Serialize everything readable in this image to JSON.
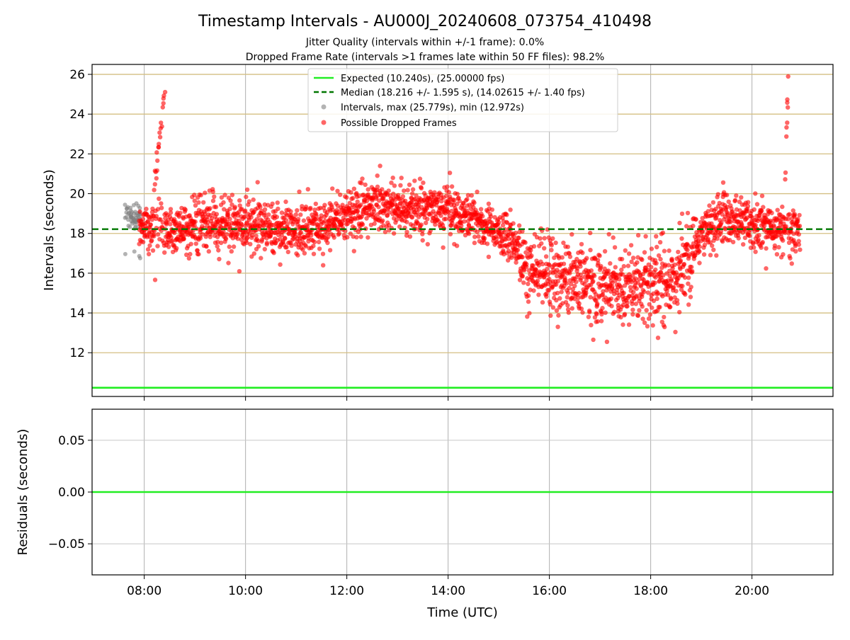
{
  "figure": {
    "title": "Timestamp Intervals - AU000J_20240608_073754_410498",
    "subtitle_1": "Jitter Quality (intervals within +/-1 frame): 0.0%",
    "subtitle_2": "Dropped Frame Rate (intervals >1 frames late within 50 FF files): 98.2%"
  },
  "chart_data": [
    {
      "type": "scatter",
      "panel": "intervals",
      "ylabel": "Intervals (seconds)",
      "xlim_hours": [
        6.97,
        21.6
      ],
      "ylim": [
        9.8,
        26.5
      ],
      "y_ticks": [
        12,
        14,
        16,
        18,
        20,
        22,
        24,
        26
      ],
      "grid": true,
      "legend_position": "top-center",
      "lines": [
        {
          "name": "Expected (10.240s), (25.00000 fps)",
          "y": 10.24,
          "color": "#22ee22",
          "style": "solid"
        },
        {
          "name": "Median (18.216 +/- 1.595 s), (14.02615 +/- 1.40 fps)",
          "y": 18.216,
          "color": "#007700",
          "style": "dashed"
        }
      ],
      "series": [
        {
          "name": "Intervals, max (25.779s), min (12.972s)",
          "color": "#808080",
          "x_range_hours": [
            7.62,
            7.93
          ],
          "y_mean": 18.9,
          "y_spread": 0.6,
          "y_min_seen": 16.2,
          "count_approx": 60
        },
        {
          "name": "Possible Dropped Frames",
          "color": "#ff0000",
          "x_range_hours": [
            7.9,
            20.95
          ],
          "trend_hours": [
            7.9,
            8.5,
            9.5,
            10.5,
            11.5,
            12.5,
            13.5,
            14.5,
            15.2,
            15.6,
            16.5,
            17.5,
            18.5,
            19.0,
            19.5,
            20.0,
            20.5,
            20.95
          ],
          "trend_y": [
            18.5,
            18.1,
            18.6,
            18.2,
            18.3,
            19.4,
            19.3,
            18.8,
            17.8,
            16.2,
            15.5,
            15.4,
            15.7,
            18.0,
            19.0,
            18.5,
            18.1,
            18.3
          ],
          "spikes": [
            {
              "start_hour": 8.2,
              "end_hour": 8.42,
              "peak_y": 25.1
            },
            {
              "start_hour": 20.65,
              "end_hour": 20.72,
              "peak_y": 25.78
            }
          ],
          "count_approx": 2800
        }
      ]
    },
    {
      "type": "line",
      "panel": "residuals",
      "xlabel": "Time (UTC)",
      "ylabel": "Residuals (seconds)",
      "xlim_hours": [
        6.97,
        21.6
      ],
      "ylim": [
        -0.08,
        0.08
      ],
      "x_ticks_hours": [
        8,
        10,
        12,
        14,
        16,
        18,
        20
      ],
      "x_tick_labels": [
        "08:00",
        "10:00",
        "12:00",
        "14:00",
        "16:00",
        "18:00",
        "20:00"
      ],
      "y_ticks": [
        0.05,
        0.0,
        -0.05
      ],
      "y_tick_labels": [
        "0.05",
        "0.00",
        "−0.05"
      ],
      "grid": true,
      "series": [
        {
          "name": "residual",
          "y": 0.0,
          "color": "#22ee22"
        }
      ]
    }
  ]
}
